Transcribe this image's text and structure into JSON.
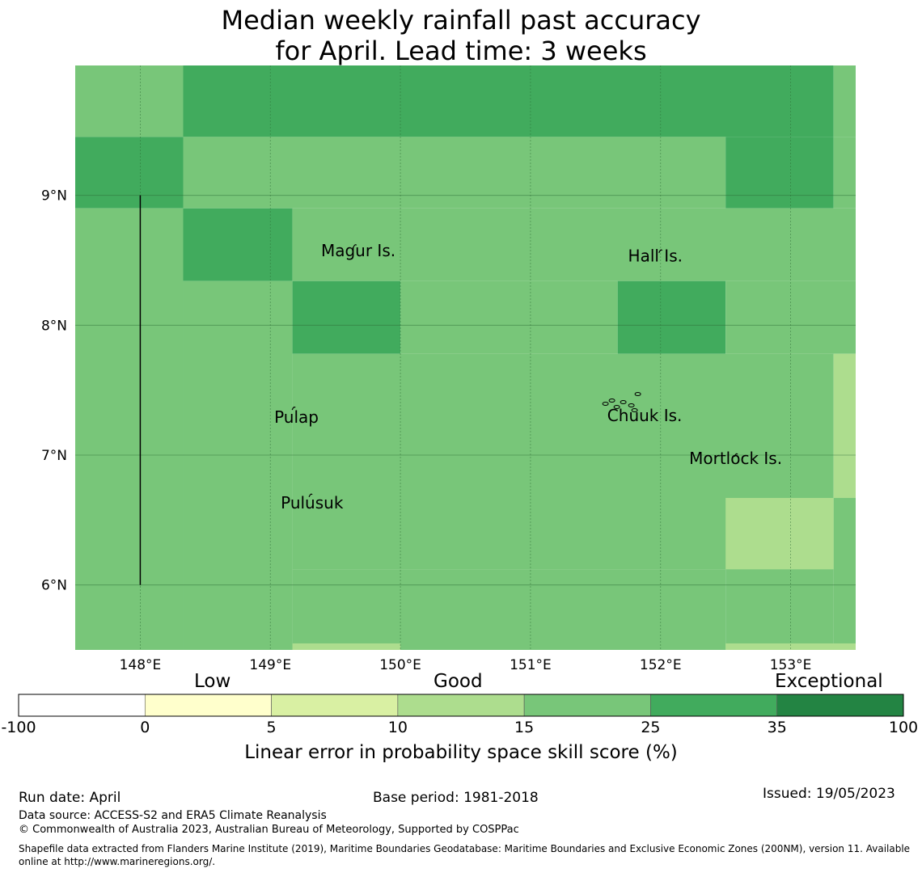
{
  "title_line1": "Median weekly rainfall past accuracy",
  "title_line2": "for April. Lead time: 3 weeks",
  "map": {
    "lon_range": [
      147.5,
      153.5
    ],
    "lat_range": [
      5.5,
      10.0
    ],
    "lon_ticks": [
      148,
      149,
      150,
      151,
      152,
      153
    ],
    "lon_tick_labels": [
      "148°E",
      "149°E",
      "150°E",
      "151°E",
      "152°E",
      "153°E"
    ],
    "lat_ticks": [
      6,
      7,
      8,
      9
    ],
    "lat_tick_labels": [
      "6°N",
      "7°N",
      "8°N",
      "9°N"
    ],
    "grid_lines": true,
    "boundary_line": {
      "lon": 148,
      "lat_from": 6,
      "lat_to": 9
    },
    "skill_cells": [
      {
        "lon": [
          147.5,
          148.33
        ],
        "lat": [
          9.45,
          10.0
        ],
        "class": "15-25"
      },
      {
        "lon": [
          148.33,
          153.33
        ],
        "lat": [
          9.45,
          10.0
        ],
        "class": "25-35"
      },
      {
        "lon": [
          153.33,
          153.5
        ],
        "lat": [
          9.45,
          10.0
        ],
        "class": "15-25"
      },
      {
        "lon": [
          147.5,
          148.33
        ],
        "lat": [
          8.9,
          9.45
        ],
        "class": "25-35"
      },
      {
        "lon": [
          148.33,
          152.5
        ],
        "lat": [
          8.9,
          9.45
        ],
        "class": "15-25"
      },
      {
        "lon": [
          152.5,
          153.33
        ],
        "lat": [
          8.9,
          9.45
        ],
        "class": "25-35"
      },
      {
        "lon": [
          153.33,
          153.5
        ],
        "lat": [
          8.9,
          9.45
        ],
        "class": "15-25"
      },
      {
        "lon": [
          147.5,
          148.33
        ],
        "lat": [
          5.5,
          8.9
        ],
        "class": "15-25"
      },
      {
        "lon": [
          148.33,
          149.17
        ],
        "lat": [
          8.34,
          8.9
        ],
        "class": "25-35"
      },
      {
        "lon": [
          149.17,
          153.5
        ],
        "lat": [
          8.34,
          8.9
        ],
        "class": "15-25"
      },
      {
        "lon": [
          148.33,
          149.17
        ],
        "lat": [
          5.5,
          8.34
        ],
        "class": "15-25"
      },
      {
        "lon": [
          149.17,
          150.0
        ],
        "lat": [
          7.78,
          8.34
        ],
        "class": "25-35"
      },
      {
        "lon": [
          150.0,
          151.67
        ],
        "lat": [
          7.78,
          8.34
        ],
        "class": "15-25"
      },
      {
        "lon": [
          151.67,
          152.5
        ],
        "lat": [
          7.78,
          8.34
        ],
        "class": "25-35"
      },
      {
        "lon": [
          152.5,
          153.5
        ],
        "lat": [
          7.78,
          8.34
        ],
        "class": "15-25"
      },
      {
        "lon": [
          149.17,
          153.33
        ],
        "lat": [
          6.12,
          7.78
        ],
        "class": "15-25"
      },
      {
        "lon": [
          153.33,
          153.5
        ],
        "lat": [
          6.67,
          7.78
        ],
        "class": "10-15"
      },
      {
        "lon": [
          153.33,
          153.5
        ],
        "lat": [
          5.5,
          6.67
        ],
        "class": "15-25"
      },
      {
        "lon": [
          152.5,
          153.33
        ],
        "lat": [
          6.12,
          6.67
        ],
        "class": "10-15"
      },
      {
        "lon": [
          149.17,
          152.5
        ],
        "lat": [
          5.5,
          6.12
        ],
        "class": "15-25"
      },
      {
        "lon": [
          152.5,
          153.33
        ],
        "lat": [
          5.5,
          6.12
        ],
        "class": "15-25"
      },
      {
        "lon": [
          149.17,
          150.0
        ],
        "lat": [
          5.5,
          5.55
        ],
        "class": "10-15"
      },
      {
        "lon": [
          152.5,
          153.5
        ],
        "lat": [
          5.5,
          5.55
        ],
        "class": "10-15"
      }
    ],
    "places": [
      {
        "name": "Magur Is.",
        "lon": 149.39,
        "lat": 8.53,
        "mark_lon": 149.65,
        "mark_lat": 8.61
      },
      {
        "name": "Hall Is.",
        "lon": 151.75,
        "lat": 8.49,
        "mark_lon": 152.0,
        "mark_lat": 8.57
      },
      {
        "name": "Pulap",
        "lon": 149.03,
        "lat": 7.25,
        "mark_lon": 149.18,
        "mark_lat": 7.36
      },
      {
        "name": "Chuuk Is.",
        "lon": 151.59,
        "lat": 7.26,
        "mark_lon": 151.85,
        "mark_lat": 7.42
      },
      {
        "name": "Mortlock Is.",
        "lon": 152.22,
        "lat": 6.93,
        "mark_lon": 152.58,
        "mark_lat": 7.0
      },
      {
        "name": "Pulusuk",
        "lon": 149.08,
        "lat": 6.59,
        "mark_lon": 149.31,
        "mark_lat": 6.69
      }
    ]
  },
  "legend": {
    "categories": [
      "Low",
      "Good",
      "Exceptional"
    ],
    "ticks": [
      "-100",
      "0",
      "5",
      "10",
      "15",
      "25",
      "35",
      "100"
    ],
    "classes": [
      {
        "id": "-100-0",
        "color": "#ffffff"
      },
      {
        "id": "0-5",
        "color": "#ffffcc"
      },
      {
        "id": "5-10",
        "color": "#d9f0a3"
      },
      {
        "id": "10-15",
        "color": "#addd8e"
      },
      {
        "id": "15-25",
        "color": "#78c679"
      },
      {
        "id": "25-35",
        "color": "#41ab5d"
      },
      {
        "id": "35-100",
        "color": "#238443"
      }
    ],
    "label": "Linear error in probability space skill score (%)"
  },
  "footer": {
    "run_date": "Run date: April",
    "base_period": "Base period: 1981-2018",
    "issued": "Issued: 19/05/2023",
    "data_source": "Data source: ACCESS-S2 and ERA5 Climate Reanalysis",
    "copyright": "© Commonwealth of Australia 2023, Australian Bureau of Meteorology, Supported by COSPPac",
    "shapefile": "Shapefile data extracted from Flanders Marine Institute (2019), Maritime Boundaries Geodatabase: Maritime Boundaries and Exclusive Economic Zones (200NM), version 11. Available online at http://www.marineregions.org/."
  }
}
